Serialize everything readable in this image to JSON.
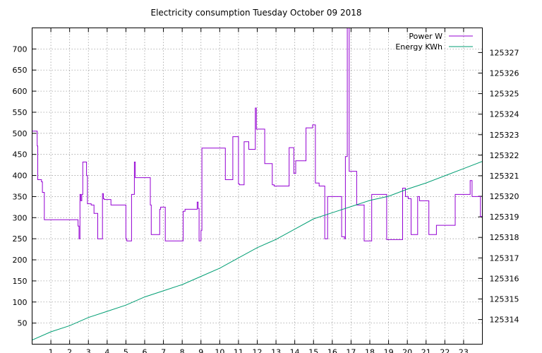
{
  "chart_data": {
    "type": "line",
    "title": "Electricity consumption Tuesday October 09 2018",
    "xlabel": "",
    "ylabel": "",
    "y2label": "",
    "x_ticks": [
      1,
      2,
      3,
      4,
      5,
      6,
      7,
      8,
      9,
      10,
      11,
      12,
      13,
      14,
      15,
      16,
      17,
      18,
      19,
      20,
      21,
      22,
      23
    ],
    "xlim": [
      0,
      24
    ],
    "y_ticks": [
      50,
      100,
      150,
      200,
      250,
      300,
      350,
      400,
      450,
      500,
      550,
      600,
      650,
      700
    ],
    "ylim": [
      0,
      750
    ],
    "y2_ticks": [
      125314,
      125315,
      125316,
      125317,
      125318,
      125319,
      125320,
      125321,
      125322,
      125323,
      125324,
      125325,
      125326,
      125327
    ],
    "y2lim": [
      125312.8,
      125328.2
    ],
    "grid": true,
    "legend_position": "top-right",
    "series": [
      {
        "name": "Power W",
        "axis": "left",
        "color": "#9400d3",
        "x": [
          0,
          0.25,
          0.27,
          0.3,
          0.5,
          0.55,
          0.65,
          2.2,
          2.45,
          2.5,
          2.55,
          2.6,
          2.65,
          2.7,
          2.9,
          2.95,
          3.15,
          3.3,
          3.5,
          3.55,
          3.75,
          3.8,
          3.85,
          4.2,
          5,
          5.05,
          5.3,
          5.35,
          5.45,
          5.5,
          6.1,
          6.3,
          6.35,
          6.8,
          6.85,
          7.1,
          7.7,
          7.95,
          8.05,
          8.15,
          8.8,
          8.85,
          8.9,
          9.0,
          9.05,
          10.1,
          10.3,
          10.7,
          11.0,
          11.05,
          11.3,
          11.55,
          11.9,
          11.95,
          12.4,
          12.8,
          12.9,
          13.7,
          13.95,
          14.05,
          14.6,
          14.95,
          15.1,
          15.3,
          15.6,
          15.75,
          16.5,
          16.55,
          16.65,
          16.7,
          16.8,
          16.9,
          17.3,
          17.7,
          17.9,
          18.1,
          18.9,
          19.1,
          19.75,
          19.9,
          20.05,
          20.2,
          20.55,
          20.65,
          21.15,
          21.35,
          21.55,
          22.55,
          23.35,
          23.45,
          23.9,
          24
        ],
        "values": [
          505,
          505,
          470,
          390,
          385,
          360,
          295,
          295,
          280,
          250,
          355,
          340,
          355,
          432,
          400,
          333,
          330,
          310,
          250,
          250,
          357,
          345,
          343,
          330,
          250,
          245,
          355,
          355,
          432,
          395,
          395,
          330,
          260,
          320,
          325,
          245,
          245,
          245,
          315,
          320,
          337,
          322,
          245,
          270,
          465,
          465,
          390,
          492,
          380,
          378,
          480,
          462,
          560,
          510,
          428,
          378,
          375,
          466,
          405,
          435,
          513,
          520,
          382,
          375,
          250,
          350,
          255,
          255,
          250,
          445,
          750,
          410,
          330,
          245,
          245,
          355,
          248,
          248,
          370,
          350,
          345,
          260,
          350,
          340,
          260,
          260,
          282,
          355,
          388,
          350,
          303,
          300
        ],
        "note": "Values estimated from gridlines; step-style trace."
      },
      {
        "name": "Energy KWh",
        "axis": "right",
        "color": "#009e73",
        "x": [
          0,
          1,
          2,
          3,
          4,
          5,
          6,
          7,
          8,
          9,
          10,
          11,
          12,
          13,
          14,
          15,
          16,
          17,
          18,
          19,
          20,
          21,
          22,
          23,
          24
        ],
        "values": [
          125313.0,
          125313.4,
          125313.7,
          125314.1,
          125314.4,
          125314.7,
          125315.1,
          125315.4,
          125315.7,
          125316.1,
          125316.5,
          125317.0,
          125317.5,
          125317.9,
          125318.4,
          125318.9,
          125319.2,
          125319.5,
          125319.8,
          125320.0,
          125320.35,
          125320.65,
          125321.0,
          125321.35,
          125321.7
        ]
      }
    ]
  }
}
